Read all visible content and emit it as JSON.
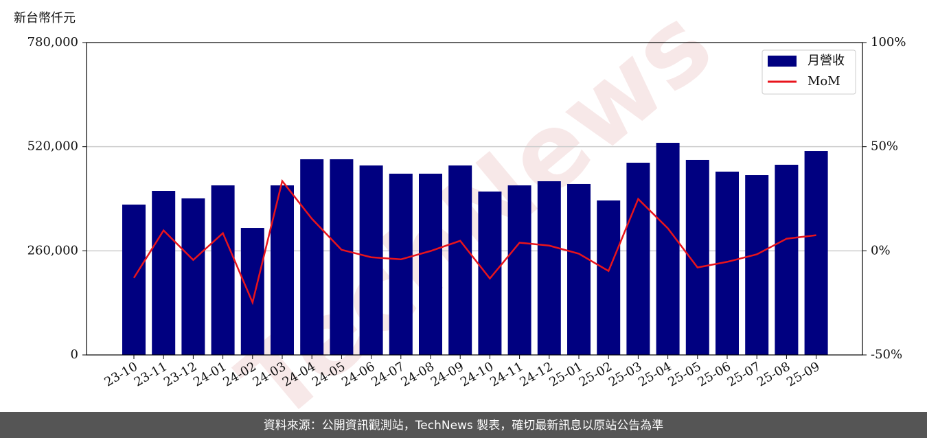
{
  "chart_data": {
    "type": "bar",
    "y_axis_label": "新台幣仟元",
    "watermark": "TechNews",
    "footer": "資料來源：公開資訊觀測站，TechNews 製表，確切最新訊息以原站公告為準",
    "categories": [
      "23-10",
      "23-11",
      "23-12",
      "24-01",
      "24-02",
      "24-03",
      "24-04",
      "24-05",
      "24-06",
      "24-07",
      "24-08",
      "24-09",
      "24-10",
      "24-11",
      "24-12",
      "25-01",
      "25-02",
      "25-03",
      "25-04",
      "25-05",
      "25-06",
      "25-07",
      "25-08",
      "25-09"
    ],
    "series": [
      {
        "name": "月營收",
        "type": "bar",
        "color": "#000080",
        "values": [
          375400,
          409700,
          390900,
          423400,
          317100,
          423400,
          488600,
          488600,
          473100,
          452600,
          452600,
          473100,
          408000,
          423400,
          433700,
          426900,
          385700,
          480000,
          529700,
          486900,
          457700,
          449100,
          474900,
          509100
        ]
      },
      {
        "name": "MoM",
        "type": "line",
        "axis": "y2",
        "color": "#e8141c",
        "values": [
          -13,
          9.8,
          -4.4,
          8.5,
          -24.8,
          33.5,
          15.4,
          0.5,
          -3.1,
          -4.1,
          -0.1,
          4.8,
          -13.3,
          3.9,
          2.5,
          -1.4,
          -9.7,
          24.9,
          10.8,
          -8.0,
          -5.3,
          -1.7,
          5.8,
          7.5
        ]
      }
    ],
    "ylim": [
      0,
      780000
    ],
    "yticks": [
      0,
      {
        "value": 260000,
        "label": "260,000"
      },
      {
        "value": 520000,
        "label": "520,000"
      },
      {
        "value": 780000,
        "label": "780,000"
      }
    ],
    "y2lim": [
      -50,
      100
    ],
    "y2ticks": [
      {
        "value": -50,
        "label": "-50%"
      },
      {
        "value": 0,
        "label": "0%"
      },
      {
        "value": 50,
        "label": "50%"
      },
      {
        "value": 100,
        "label": "100%"
      }
    ],
    "grid": true,
    "legend": "upper right"
  }
}
